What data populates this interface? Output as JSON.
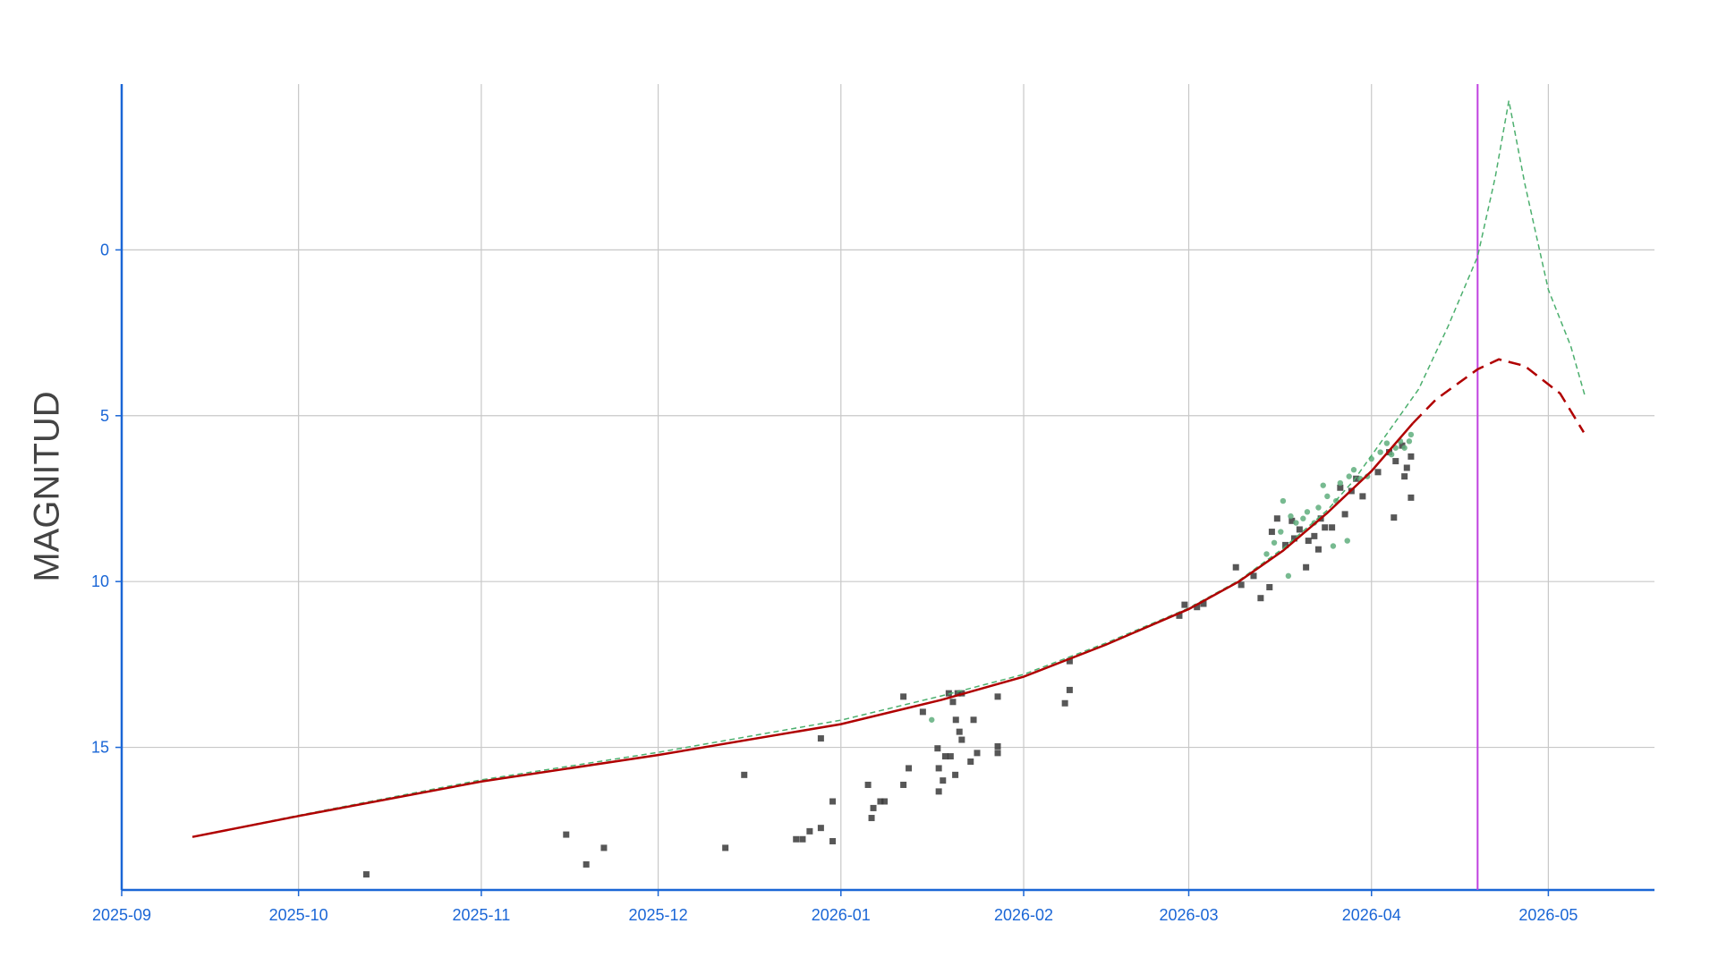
{
  "chart_data": {
    "type": "line",
    "ylabel": "MAGNITUD",
    "xlim": [
      0,
      260
    ],
    "ylim": [
      19.3,
      -5
    ],
    "xticks": [
      {
        "value": 0,
        "label": "2025-09"
      },
      {
        "value": 30,
        "label": "2025-10"
      },
      {
        "value": 61,
        "label": "2025-11"
      },
      {
        "value": 91,
        "label": "2025-12"
      },
      {
        "value": 122,
        "label": "2026-01"
      },
      {
        "value": 153,
        "label": "2026-02"
      },
      {
        "value": 181,
        "label": "2026-03"
      },
      {
        "value": 212,
        "label": "2026-04"
      },
      {
        "value": 242,
        "label": "2026-05"
      }
    ],
    "yticks": [
      0,
      5,
      10,
      15
    ],
    "grid": true,
    "vlines": [
      {
        "x": 230,
        "color": "#c040e0"
      }
    ],
    "series": [
      {
        "type": "scatter",
        "marker": "square",
        "color": "#3a3a3a",
        "x": [
          41.5,
          75.4,
          78.8,
          81.8,
          102.4,
          105.6,
          114.4,
          115.5,
          116.7,
          118.6,
          118.6,
          120.6,
          120.6,
          126.6,
          127.2,
          127.5,
          128.7,
          129.4,
          132.6,
          132.6,
          133.5,
          135.9,
          138.4,
          138.6,
          138.6,
          139.3,
          139.7,
          140.3,
          140.6,
          141,
          141.4,
          141.5,
          141.8,
          142.1,
          142.5,
          142.5,
          144,
          144.5,
          145.1,
          148.6,
          148.6,
          148.6,
          160,
          160.8,
          160.8,
          179.4,
          180.3,
          182.4,
          183.5,
          189,
          189.9,
          192,
          193.2,
          194.7,
          195.1,
          196,
          197.4,
          198.5,
          198.9,
          199.8,
          200.9,
          201.3,
          202.3,
          203,
          203.4,
          204.1,
          205.3,
          206.7,
          207.5,
          208.6,
          209.4,
          210.5,
          213.1,
          215,
          215.8,
          216.1,
          217.2,
          217.6,
          218,
          218.7,
          218.7
        ],
        "values": [
          18.83,
          17.63,
          18.53,
          18.03,
          18.03,
          15.83,
          17.77,
          17.77,
          17.53,
          17.43,
          14.73,
          17.83,
          16.63,
          16.13,
          17.13,
          16.83,
          16.63,
          16.63,
          16.13,
          13.47,
          15.63,
          13.93,
          15.03,
          16.33,
          15.63,
          16.0,
          15.27,
          13.37,
          15.27,
          13.63,
          15.83,
          14.17,
          13.37,
          14.53,
          14.77,
          13.37,
          15.43,
          14.17,
          15.17,
          13.47,
          14.97,
          15.17,
          13.67,
          13.27,
          12.4,
          11.03,
          10.7,
          10.77,
          10.67,
          9.57,
          10.1,
          9.83,
          10.5,
          10.17,
          8.5,
          8.1,
          8.9,
          8.17,
          8.7,
          8.43,
          9.57,
          8.77,
          8.63,
          9.03,
          8.1,
          8.37,
          8.37,
          7.17,
          7.97,
          7.27,
          6.9,
          7.43,
          6.7,
          6.1,
          8.07,
          6.37,
          5.9,
          6.83,
          6.57,
          6.23,
          7.47
        ]
      },
      {
        "type": "scatter",
        "marker": "circle",
        "color": "#5fae7c",
        "x": [
          137.4,
          194.2,
          195.5,
          196.6,
          197,
          197.9,
          198.3,
          199.2,
          200.4,
          201.1,
          202.3,
          203,
          203.8,
          204.5,
          205.5,
          206,
          206.7,
          207.9,
          208.2,
          209,
          210.1,
          211.3,
          212,
          213.5,
          214.6,
          215.4,
          216.1,
          216.9,
          217.6,
          218.4,
          218.7
        ],
        "values": [
          14.17,
          9.17,
          8.83,
          8.5,
          7.57,
          9.83,
          8.03,
          8.23,
          8.1,
          7.9,
          8.23,
          7.77,
          7.1,
          7.43,
          8.93,
          7.57,
          7.03,
          8.77,
          6.83,
          6.63,
          6.9,
          6.83,
          6.3,
          6.1,
          5.83,
          6.17,
          5.97,
          5.77,
          5.97,
          5.77,
          5.57
        ]
      },
      {
        "type": "line",
        "dash": "6 4",
        "width": 1.5,
        "color": "#4caf6e",
        "x": [
          12,
          30,
          61,
          91,
          122,
          139,
          153,
          167,
          181,
          189.5,
          197,
          204.5,
          209,
          214,
          220,
          225,
          230,
          233,
          235.3,
          238,
          242,
          245.8,
          248.2
        ],
        "values": [
          17.7,
          17.05,
          15.98,
          15.15,
          14.18,
          13.45,
          12.8,
          11.85,
          10.8,
          9.97,
          9.0,
          7.85,
          6.95,
          5.7,
          4.2,
          2.3,
          0.2,
          -2.2,
          -4.5,
          -2.0,
          1.2,
          2.9,
          4.4
        ]
      },
      {
        "type": "line",
        "dash": "",
        "width": 2.5,
        "color": "#b00000",
        "x": [
          12,
          30,
          61,
          91,
          122,
          139,
          153,
          167,
          181,
          189.5,
          197,
          204.5,
          212,
          219
        ],
        "values": [
          17.7,
          17.07,
          16.03,
          15.23,
          14.3,
          13.57,
          12.87,
          11.9,
          10.83,
          10.0,
          9.07,
          7.93,
          6.67,
          5.23
        ]
      },
      {
        "type": "line",
        "dash": "14 8",
        "width": 2.5,
        "color": "#b00000",
        "x": [
          219,
          223,
          230,
          233.6,
          238,
          244,
          248
        ],
        "values": [
          5.23,
          4.5,
          3.6,
          3.3,
          3.5,
          4.33,
          5.5
        ]
      }
    ]
  }
}
